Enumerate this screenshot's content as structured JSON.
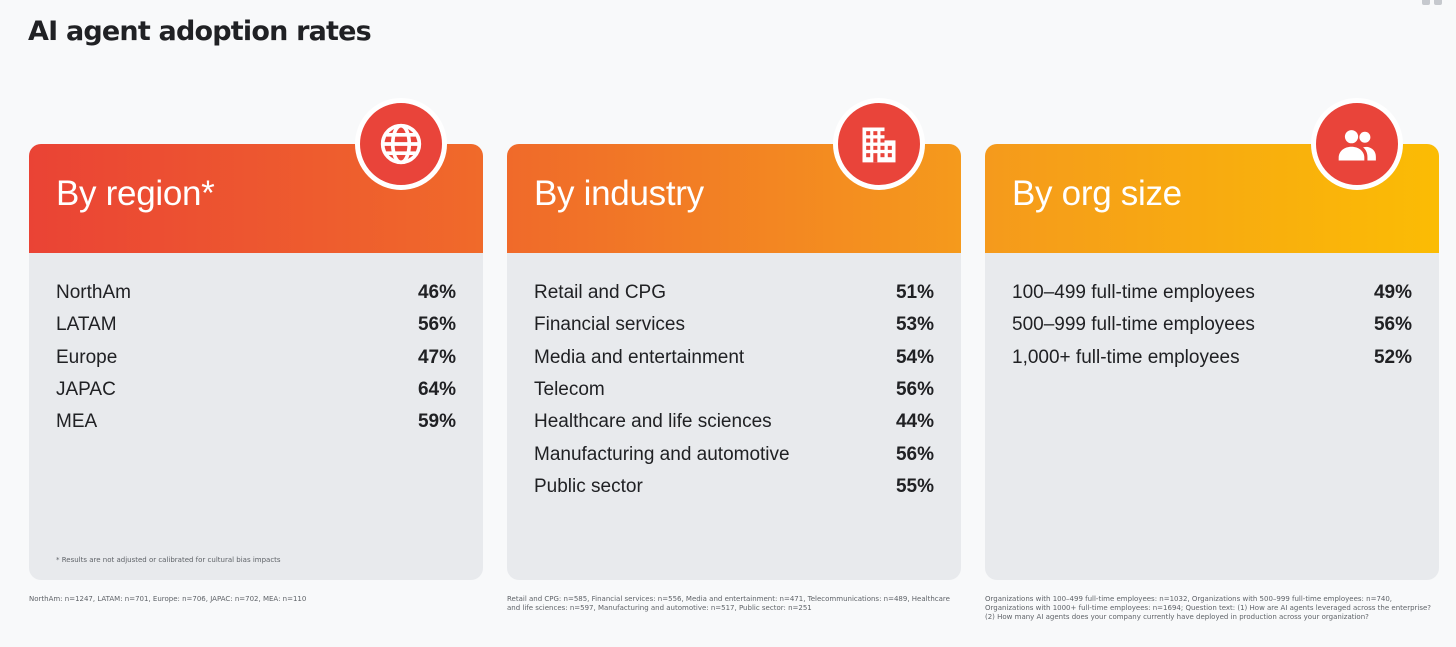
{
  "page": {
    "title": "AI agent adoption rates"
  },
  "chart_data": [
    {
      "type": "table",
      "title": "By region*",
      "icon": "globe-icon",
      "categories": [
        "NorthAm",
        "LATAM",
        "Europe",
        "JAPAC",
        "MEA"
      ],
      "values": [
        46,
        56,
        47,
        64,
        59
      ],
      "value_labels": [
        "46%",
        "56%",
        "47%",
        "64%",
        "59%"
      ],
      "footnote": "* Results are not adjusted or calibrated for cultural bias impacts",
      "source": "NorthAm: n=1247, LATAM: n=701, Europe: n=706, JAPAC: n=702, MEA: n=110",
      "gradient": [
        "#ea4335",
        "#f06a2a"
      ]
    },
    {
      "type": "table",
      "title": "By industry",
      "icon": "building-icon",
      "categories": [
        "Retail and CPG",
        "Financial services",
        "Media and entertainment",
        "Telecom",
        "Healthcare and life sciences",
        "Manufacturing and automotive",
        "Public sector"
      ],
      "values": [
        51,
        53,
        54,
        56,
        44,
        56,
        55
      ],
      "value_labels": [
        "51%",
        "53%",
        "54%",
        "56%",
        "44%",
        "56%",
        "55%"
      ],
      "source": "Retail and CPG: n=585, Financial services: n=556, Media and entertainment: n=471, Telecommunications: n=489, Healthcare and life sciences: n=597, Manufacturing and automotive: n=517, Public sector: n=251",
      "gradient": [
        "#f06a2a",
        "#f59a1c"
      ]
    },
    {
      "type": "table",
      "title": "By org size",
      "icon": "people-icon",
      "categories": [
        "100–499 full-time employees",
        "500–999 full-time employees",
        "1,000+ full-time employees"
      ],
      "values": [
        49,
        56,
        52
      ],
      "value_labels": [
        "49%",
        "56%",
        "52%"
      ],
      "source": "Organizations with 100–499 full-time employees: n=1032, Organizations with 500–999 full-time employees: n=740, Organizations with 1000+ full-time employees: n=1694; Question text: (1) How are AI agents leveraged across the enterprise? (2) How many AI agents does your company currently have deployed in production across your organization?",
      "gradient": [
        "#f59a1c",
        "#fbbc04"
      ]
    }
  ]
}
